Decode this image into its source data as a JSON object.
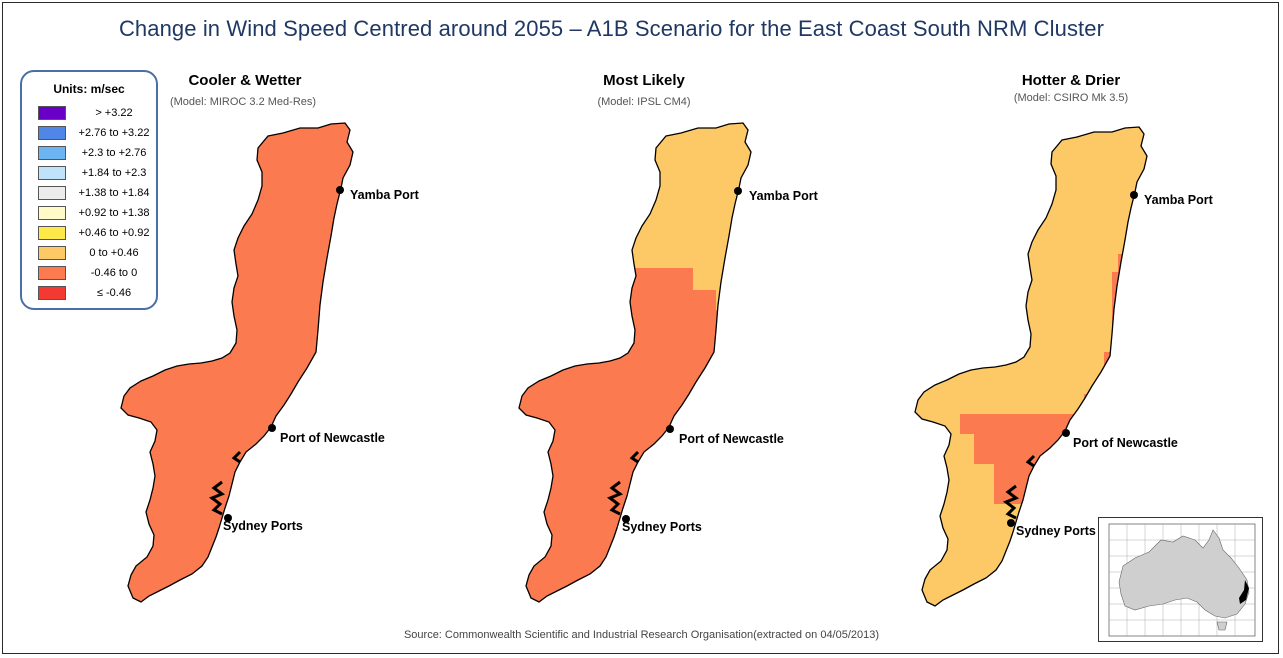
{
  "title": "Change in Wind Speed Centred around 2055 – A1B Scenario for the East Coast South NRM Cluster",
  "legend": {
    "title": "Units: m/sec",
    "items": [
      {
        "label": "> +3.22",
        "color": "#6a00c8"
      },
      {
        "label": "+2.76 to +3.22",
        "color": "#4f86e8"
      },
      {
        "label": "+2.3 to +2.76",
        "color": "#6cb4f2"
      },
      {
        "label": "+1.84 to +2.3",
        "color": "#bfe3fb"
      },
      {
        "label": "+1.38 to +1.84",
        "color": "#ececec"
      },
      {
        "label": "+0.92 to +1.38",
        "color": "#fffac8"
      },
      {
        "label": "+0.46 to +0.92",
        "color": "#ffe94a"
      },
      {
        "label": "0 to +0.46",
        "color": "#fdc866"
      },
      {
        "label": "-0.46 to 0",
        "color": "#fb7a4f"
      },
      {
        "label": "≤ -0.46",
        "color": "#f23a32"
      }
    ]
  },
  "panels": [
    {
      "title": "Cooler & Wetter",
      "model": "(Model: MIROC 3.2 Med-Res)",
      "class": "-0.46 to 0"
    },
    {
      "title": "Most Likely",
      "model": "(Model: IPSL CM4)",
      "class": "-0.46 to 0 (south); 0 to +0.46 (north)"
    },
    {
      "title": "Hotter & Drier",
      "model": "(Model: CSIRO Mk 3.5)",
      "class": "0 to +0.46 (most); -0.46 to 0 (coastal strip, Newcastle area)"
    }
  ],
  "ports": {
    "yamba": "Yamba Port",
    "newcastle": "Port of Newcastle",
    "sydney": "Sydney Ports"
  },
  "colors": {
    "orange_red": "#fb7a4f",
    "light_orange": "#fdc866",
    "outline": "#000000",
    "title": "#1f3864"
  },
  "source": "Source: Commonwealth Scientific and Industrial Research Organisation(extracted on 04/05/2013)"
}
